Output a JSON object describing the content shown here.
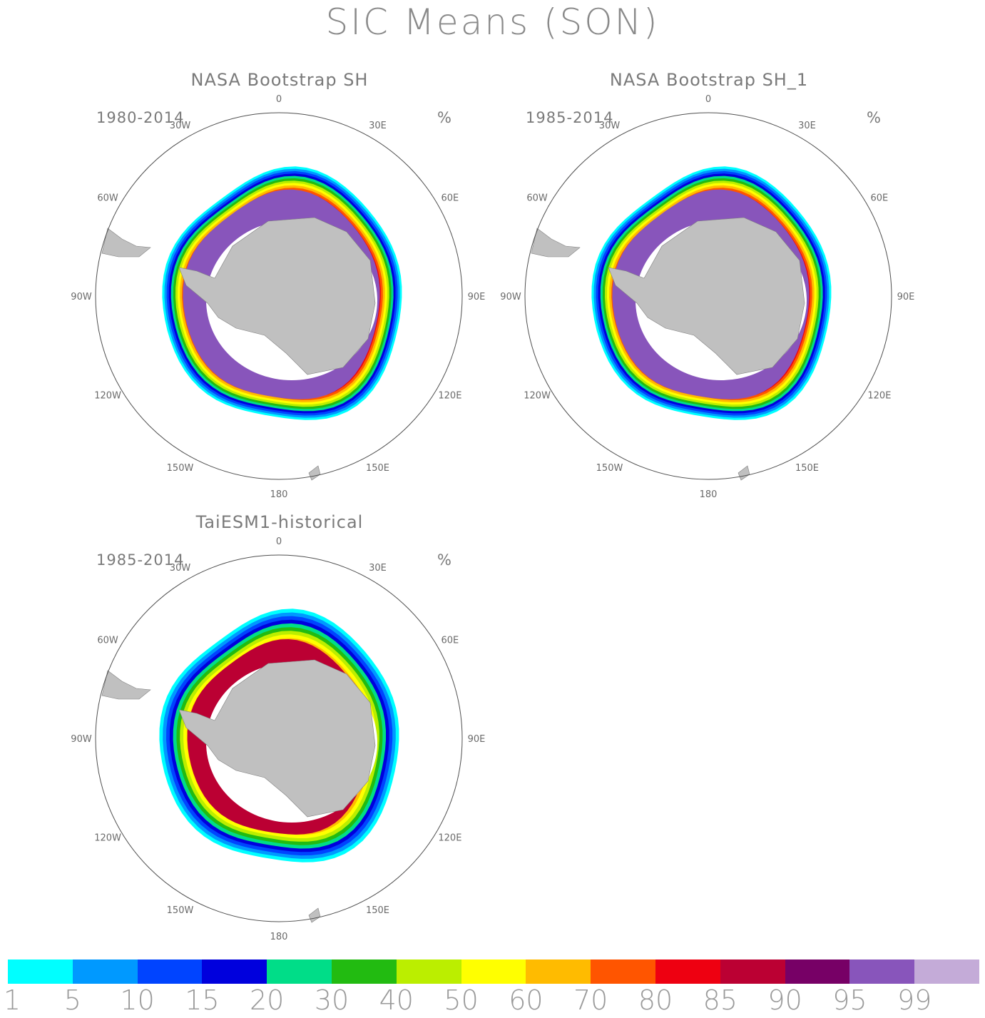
{
  "title": "SIC Means (SON)",
  "unit": "%",
  "panels": [
    {
      "title": "NASA Bootstrap SH",
      "period": "1980-2014"
    },
    {
      "title": "NASA Bootstrap SH_1",
      "period": "1985-2014"
    },
    {
      "title": "TaiESM1-historical",
      "period": "1985-2014"
    }
  ],
  "longitude_labels": [
    "0",
    "30E",
    "60E",
    "90E",
    "120E",
    "150E",
    "180",
    "150W",
    "120W",
    "90W",
    "60W",
    "30W"
  ],
  "colorbar": {
    "levels": [
      "1",
      "5",
      "10",
      "15",
      "20",
      "30",
      "40",
      "50",
      "60",
      "70",
      "80",
      "85",
      "90",
      "95",
      "99"
    ],
    "colors": [
      "#00ffff",
      "#0099ff",
      "#0044ff",
      "#0000dd",
      "#00dd88",
      "#22bb11",
      "#bbee00",
      "#ffff00",
      "#ffbb00",
      "#ff5500",
      "#ee0011",
      "#bb0033",
      "#770066",
      "#8855bb",
      "#c4abd8"
    ]
  },
  "colors": {
    "land": "#c0c0c0",
    "land_outline": "#808080",
    "circle": "#505050"
  }
}
